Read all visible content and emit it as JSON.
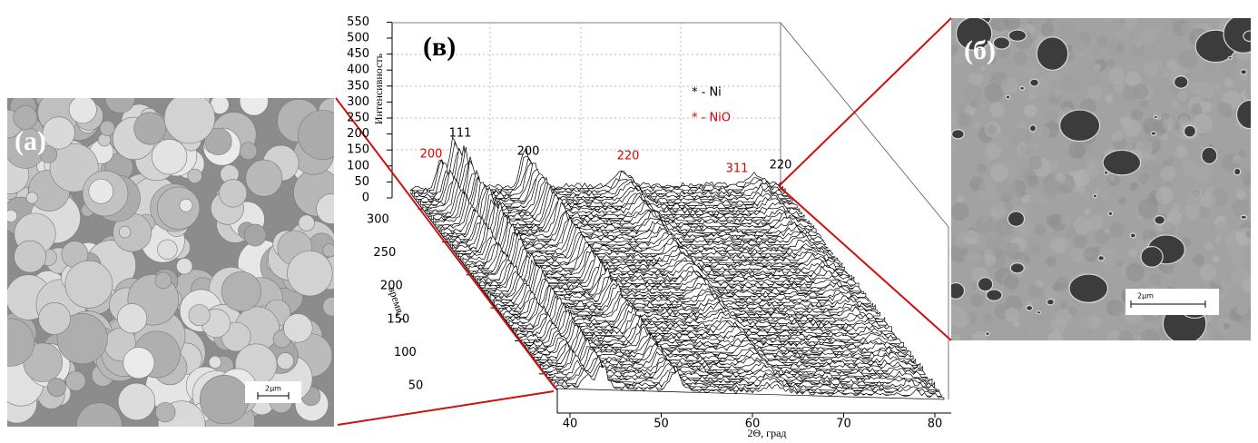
{
  "panels": {
    "a": {
      "label": "(а)",
      "scale_bar": "2μm"
    },
    "b": {
      "label": "(б)",
      "scale_bar": "2μm"
    },
    "v": {
      "label": "(в)",
      "intensity_label": "Интенсивность",
      "intensity_ticks": [
        0,
        50,
        100,
        150,
        200,
        250,
        300,
        350,
        400,
        450,
        500,
        550
      ],
      "time_label": "время, с",
      "time_ticks": [
        300,
        250,
        200,
        150,
        100,
        50
      ],
      "angle_label": "2Θ, град",
      "angle_ticks": [
        40,
        50,
        60,
        70,
        80
      ],
      "legend": [
        {
          "text": "* - Ni",
          "color": "#000000"
        },
        {
          "text": "* - NiO",
          "color": "#e00000"
        }
      ],
      "peaks": [
        {
          "text": "200",
          "color": "#e00000"
        },
        {
          "text": "111",
          "color": "#000000"
        },
        {
          "text": "200",
          "color": "#000000"
        },
        {
          "text": "220",
          "color": "#e00000"
        },
        {
          "text": "311",
          "color": "#e00000"
        },
        {
          "text": "220",
          "color": "#000000"
        }
      ]
    }
  }
}
